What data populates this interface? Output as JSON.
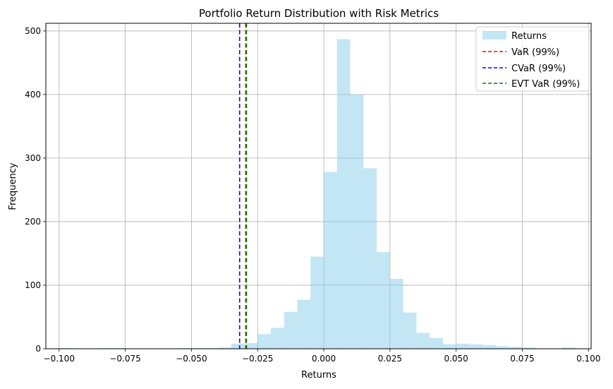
{
  "chart_data": {
    "type": "histogram",
    "title": "Portfolio Return Distribution with Risk Metrics",
    "xlabel": "Returns",
    "ylabel": "Frequency",
    "xlim": [
      -0.105,
      0.101
    ],
    "ylim": [
      0,
      512
    ],
    "grid": true,
    "legend_position": "upper right",
    "x_ticks": [
      -0.1,
      -0.075,
      -0.05,
      -0.025,
      0.0,
      0.025,
      0.05,
      0.075,
      0.1
    ],
    "x_tick_labels": [
      "−0.100",
      "−0.075",
      "−0.050",
      "−0.025",
      "0.000",
      "0.025",
      "0.050",
      "0.075",
      "0.100"
    ],
    "y_ticks": [
      0,
      100,
      200,
      300,
      400,
      500
    ],
    "y_tick_labels": [
      "0",
      "100",
      "200",
      "300",
      "400",
      "500"
    ],
    "bin_width": 0.005,
    "bins": [
      {
        "x0": -0.1,
        "x1": -0.095,
        "count": 1
      },
      {
        "x0": -0.085,
        "x1": -0.08,
        "count": 1
      },
      {
        "x0": -0.08,
        "x1": -0.075,
        "count": 1
      },
      {
        "x0": -0.055,
        "x1": -0.05,
        "count": 1
      },
      {
        "x0": -0.05,
        "x1": -0.045,
        "count": 1
      },
      {
        "x0": -0.045,
        "x1": -0.04,
        "count": 1
      },
      {
        "x0": -0.04,
        "x1": -0.035,
        "count": 2
      },
      {
        "x0": -0.035,
        "x1": -0.03,
        "count": 8
      },
      {
        "x0": -0.03,
        "x1": -0.025,
        "count": 9
      },
      {
        "x0": -0.025,
        "x1": -0.02,
        "count": 23
      },
      {
        "x0": -0.02,
        "x1": -0.015,
        "count": 33
      },
      {
        "x0": -0.015,
        "x1": -0.01,
        "count": 58
      },
      {
        "x0": -0.01,
        "x1": -0.005,
        "count": 77
      },
      {
        "x0": -0.005,
        "x1": 0.0,
        "count": 145
      },
      {
        "x0": 0.0,
        "x1": 0.005,
        "count": 278
      },
      {
        "x0": 0.005,
        "x1": 0.01,
        "count": 487
      },
      {
        "x0": 0.01,
        "x1": 0.015,
        "count": 400
      },
      {
        "x0": 0.015,
        "x1": 0.02,
        "count": 284
      },
      {
        "x0": 0.02,
        "x1": 0.025,
        "count": 152
      },
      {
        "x0": 0.025,
        "x1": 0.03,
        "count": 110
      },
      {
        "x0": 0.03,
        "x1": 0.035,
        "count": 57
      },
      {
        "x0": 0.035,
        "x1": 0.04,
        "count": 25
      },
      {
        "x0": 0.04,
        "x1": 0.045,
        "count": 17
      },
      {
        "x0": 0.045,
        "x1": 0.05,
        "count": 7
      },
      {
        "x0": 0.05,
        "x1": 0.055,
        "count": 8
      },
      {
        "x0": 0.055,
        "x1": 0.06,
        "count": 7
      },
      {
        "x0": 0.06,
        "x1": 0.065,
        "count": 6
      },
      {
        "x0": 0.065,
        "x1": 0.07,
        "count": 4
      },
      {
        "x0": 0.07,
        "x1": 0.075,
        "count": 3
      },
      {
        "x0": 0.075,
        "x1": 0.08,
        "count": 2
      },
      {
        "x0": 0.09,
        "x1": 0.095,
        "count": 2
      }
    ],
    "vlines": [
      {
        "name": "VaR (99%)",
        "x": -0.0295,
        "color": "#ff0000"
      },
      {
        "name": "CVaR (99%)",
        "x": -0.0318,
        "color": "#0000ff"
      },
      {
        "name": "EVT VaR (99%)",
        "x": -0.0292,
        "color": "#008000"
      }
    ],
    "series_name": "Returns",
    "colors": {
      "bars": "#87ceeb",
      "bar_alpha": 0.5,
      "grid": "#b0b0b0"
    }
  }
}
